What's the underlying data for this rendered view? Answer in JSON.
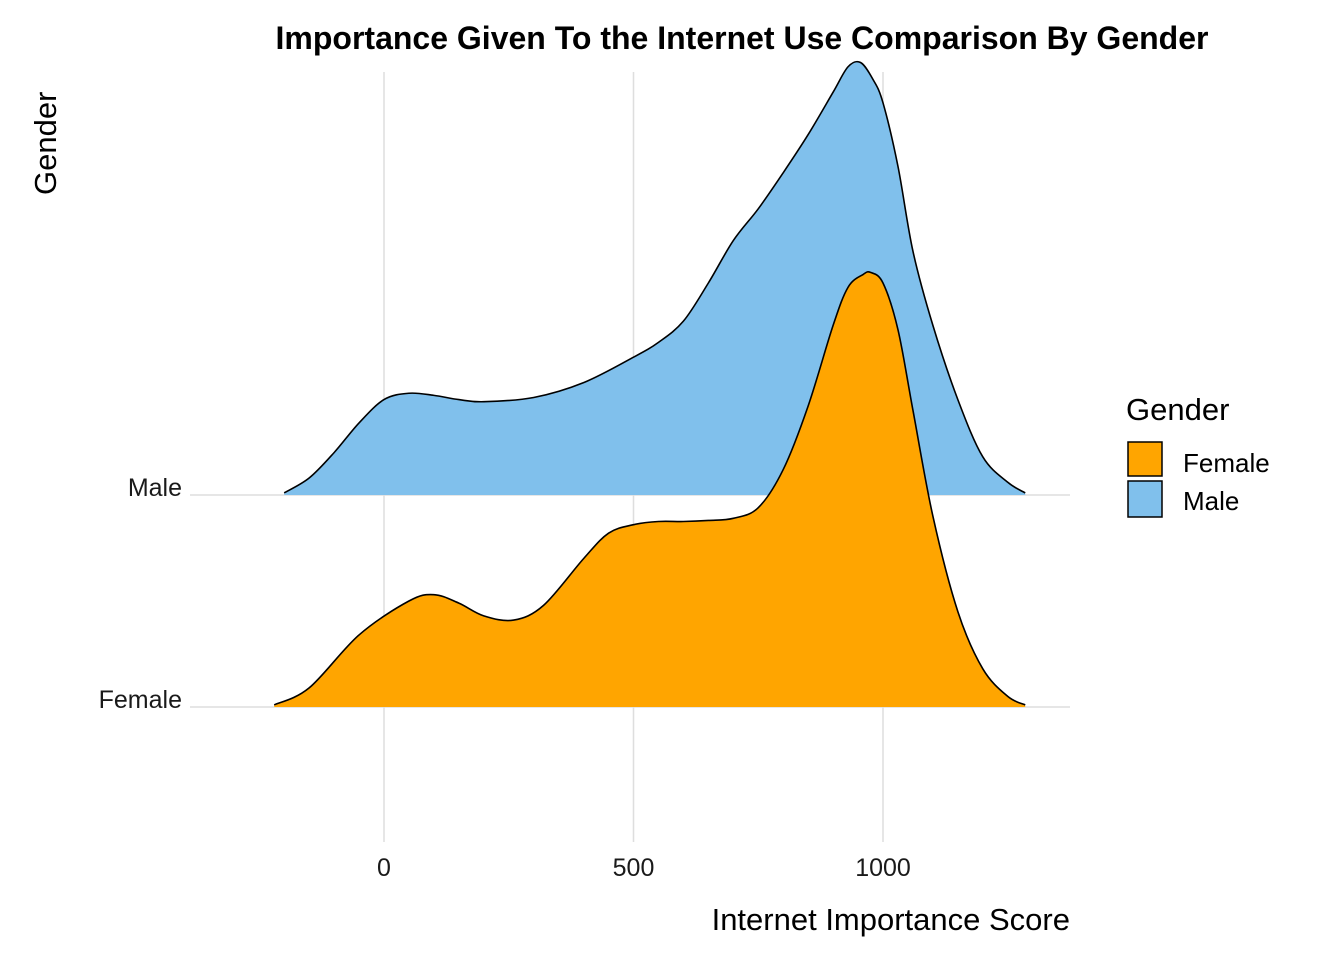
{
  "chart_data": {
    "type": "area",
    "subtype": "ridgeline-density",
    "title": "Importance Given To the Internet Use Comparison By Gender",
    "xlabel": "Internet Importance Score",
    "ylabel": "Gender",
    "xlim": [
      -400,
      1370
    ],
    "x_ticks": [
      0,
      500,
      1000
    ],
    "x_tick_labels": [
      "0",
      "500",
      "1000"
    ],
    "grid": true,
    "legend": {
      "title": "Gender",
      "placement": "right",
      "entries": [
        {
          "label": "Female",
          "color": "#FFA500"
        },
        {
          "label": "Male",
          "color": "#80C0EC"
        }
      ]
    },
    "categories": [
      "Female",
      "Male"
    ],
    "series": [
      {
        "name": "Female",
        "color": "#FFA500",
        "x": [
          -220,
          -150,
          -50,
          50,
          100,
          150,
          200,
          260,
          320,
          400,
          450,
          500,
          550,
          600,
          650,
          700,
          750,
          800,
          850,
          900,
          930,
          960,
          975,
          1000,
          1030,
          1060,
          1100,
          1150,
          1200,
          1250,
          1285
        ],
        "density": [
          0.01,
          0.09,
          0.34,
          0.5,
          0.53,
          0.49,
          0.43,
          0.41,
          0.48,
          0.7,
          0.82,
          0.86,
          0.875,
          0.875,
          0.88,
          0.89,
          0.94,
          1.12,
          1.42,
          1.8,
          1.98,
          2.04,
          2.05,
          2.0,
          1.78,
          1.4,
          0.9,
          0.45,
          0.18,
          0.05,
          0.01
        ]
      },
      {
        "name": "Male",
        "color": "#80C0EC",
        "x": [
          -200,
          -150,
          -100,
          -50,
          0,
          50,
          100,
          150,
          200,
          300,
          400,
          500,
          550,
          600,
          650,
          700,
          750,
          800,
          850,
          900,
          930,
          955,
          980,
          1000,
          1030,
          1060,
          1100,
          1150,
          1200,
          1250,
          1285
        ],
        "density": [
          0.01,
          0.08,
          0.2,
          0.34,
          0.45,
          0.48,
          0.47,
          0.45,
          0.44,
          0.46,
          0.53,
          0.65,
          0.72,
          0.82,
          1.0,
          1.2,
          1.35,
          1.52,
          1.7,
          1.9,
          2.02,
          2.04,
          1.96,
          1.85,
          1.55,
          1.15,
          0.8,
          0.45,
          0.18,
          0.06,
          0.01
        ]
      }
    ]
  }
}
